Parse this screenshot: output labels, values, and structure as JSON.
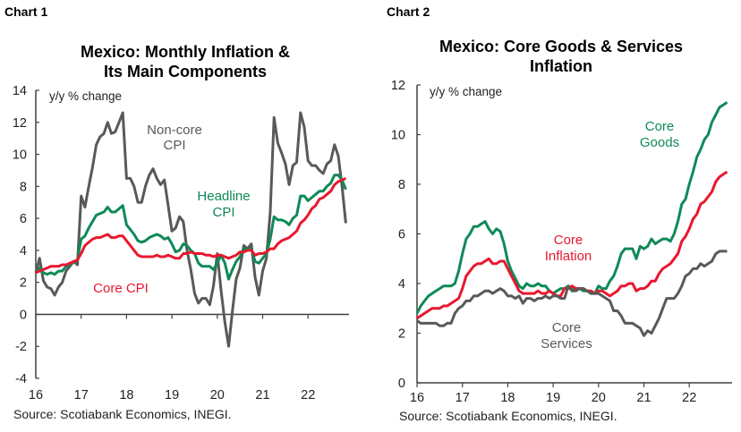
{
  "colors": {
    "non_core": "#595959",
    "headline": "#0e8a57",
    "core": "#e8182e",
    "axis": "#404040"
  },
  "chart_data": [
    {
      "label": "Chart 1",
      "type": "line",
      "title_lines": [
        "Mexico: Monthly Inflation &",
        "Its Main Components"
      ],
      "ylabel": "y/y % change",
      "ylim": [
        -4,
        14
      ],
      "yticks": [
        -4,
        -2,
        0,
        2,
        4,
        6,
        8,
        10,
        12,
        14
      ],
      "xtick_labels": [
        "16",
        "17",
        "18",
        "19",
        "20",
        "21",
        "22"
      ],
      "grid": false,
      "source": "Source: Scotiabank Economics, INEGI.",
      "x": [
        "2016-01",
        "2016-02",
        "2016-03",
        "2016-04",
        "2016-05",
        "2016-06",
        "2016-07",
        "2016-08",
        "2016-09",
        "2016-10",
        "2016-11",
        "2016-12",
        "2017-01",
        "2017-02",
        "2017-03",
        "2017-04",
        "2017-05",
        "2017-06",
        "2017-07",
        "2017-08",
        "2017-09",
        "2017-10",
        "2017-11",
        "2017-12",
        "2018-01",
        "2018-02",
        "2018-03",
        "2018-04",
        "2018-05",
        "2018-06",
        "2018-07",
        "2018-08",
        "2018-09",
        "2018-10",
        "2018-11",
        "2018-12",
        "2019-01",
        "2019-02",
        "2019-03",
        "2019-04",
        "2019-05",
        "2019-06",
        "2019-07",
        "2019-08",
        "2019-09",
        "2019-10",
        "2019-11",
        "2019-12",
        "2020-01",
        "2020-02",
        "2020-03",
        "2020-04",
        "2020-05",
        "2020-06",
        "2020-07",
        "2020-08",
        "2020-09",
        "2020-10",
        "2020-11",
        "2020-12",
        "2021-01",
        "2021-02",
        "2021-03",
        "2021-04",
        "2021-05",
        "2021-06",
        "2021-07",
        "2021-08",
        "2021-09",
        "2021-10",
        "2021-11",
        "2021-12",
        "2022-01",
        "2022-02",
        "2022-03",
        "2022-04",
        "2022-05",
        "2022-06",
        "2022-07",
        "2022-08",
        "2022-09",
        "2022-10",
        "2022-11"
      ],
      "series": [
        {
          "name": "Non-core CPI",
          "label_lines": [
            "Non-core",
            "CPI"
          ],
          "color": "#595959",
          "values": [
            2.6,
            3.5,
            2.1,
            1.7,
            1.6,
            1.2,
            1.7,
            2.0,
            2.7,
            3.0,
            3.3,
            3.1,
            7.4,
            6.7,
            8.0,
            9.2,
            10.6,
            11.1,
            11.3,
            12.0,
            11.3,
            11.4,
            12.0,
            12.6,
            8.5,
            8.5,
            8.0,
            7.0,
            7.0,
            8.0,
            8.7,
            9.1,
            8.5,
            8.1,
            8.4,
            6.8,
            5.2,
            5.4,
            6.1,
            5.8,
            4.0,
            2.8,
            1.3,
            0.7,
            1.0,
            1.0,
            0.6,
            1.8,
            3.8,
            1.5,
            -0.5,
            -2.0,
            0.2,
            2.2,
            2.9,
            4.3,
            4.1,
            4.4,
            2.3,
            1.2,
            2.7,
            3.5,
            6.4,
            12.3,
            10.7,
            10.1,
            9.4,
            8.1,
            9.3,
            9.5,
            12.6,
            11.7,
            9.6,
            9.3,
            9.3,
            9.0,
            8.8,
            9.4,
            9.6,
            10.6,
            9.9,
            8.0,
            5.7
          ]
        },
        {
          "name": "Headline CPI",
          "label_lines": [
            "Headline",
            "CPI"
          ],
          "color": "#0e8a57",
          "values": [
            2.6,
            2.9,
            2.6,
            2.5,
            2.6,
            2.5,
            2.7,
            2.7,
            3.0,
            3.1,
            3.3,
            3.4,
            4.7,
            4.9,
            5.4,
            5.8,
            6.2,
            6.3,
            6.4,
            6.7,
            6.4,
            6.4,
            6.6,
            6.8,
            5.6,
            5.3,
            5.0,
            4.6,
            4.5,
            4.6,
            4.8,
            4.9,
            5.0,
            4.9,
            4.7,
            4.8,
            4.4,
            3.9,
            4.0,
            4.4,
            4.3,
            4.0,
            3.8,
            3.2,
            3.0,
            3.0,
            3.0,
            2.8,
            3.2,
            3.7,
            3.2,
            2.2,
            2.8,
            3.3,
            3.6,
            4.1,
            4.0,
            4.1,
            3.3,
            3.2,
            3.5,
            3.8,
            4.7,
            6.1,
            5.9,
            5.9,
            5.8,
            5.6,
            6.0,
            6.2,
            7.4,
            7.4,
            7.1,
            7.3,
            7.5,
            7.7,
            7.7,
            8.0,
            8.2,
            8.7,
            8.7,
            8.4,
            7.8
          ]
        },
        {
          "name": "Core CPI",
          "label_lines": [
            "Core CPI"
          ],
          "color": "#e8182e",
          "values": [
            2.6,
            2.7,
            2.8,
            2.9,
            3.0,
            3.0,
            3.0,
            3.1,
            3.1,
            3.2,
            3.3,
            3.4,
            3.8,
            4.3,
            4.5,
            4.7,
            4.8,
            4.8,
            4.9,
            5.0,
            4.8,
            4.8,
            4.9,
            4.9,
            4.6,
            4.3,
            4.0,
            3.7,
            3.6,
            3.6,
            3.6,
            3.6,
            3.7,
            3.6,
            3.6,
            3.7,
            3.6,
            3.5,
            3.5,
            3.8,
            3.8,
            3.9,
            3.8,
            3.8,
            3.8,
            3.7,
            3.7,
            3.6,
            3.7,
            3.7,
            3.6,
            3.5,
            3.6,
            3.7,
            3.9,
            3.9,
            4.0,
            4.0,
            3.7,
            3.8,
            3.8,
            3.9,
            4.1,
            4.1,
            4.4,
            4.6,
            4.7,
            4.8,
            5.0,
            5.2,
            5.7,
            5.9,
            6.2,
            6.6,
            6.8,
            7.2,
            7.3,
            7.5,
            7.7,
            8.1,
            8.3,
            8.4,
            8.5
          ]
        }
      ]
    },
    {
      "label": "Chart 2",
      "type": "line",
      "title_lines": [
        "Mexico: Core Goods & Services",
        "Inflation"
      ],
      "ylabel": "y/y % change",
      "ylim": [
        0,
        12
      ],
      "yticks": [
        0,
        2,
        4,
        6,
        8,
        10,
        12
      ],
      "xtick_labels": [
        "16",
        "17",
        "18",
        "19",
        "20",
        "21",
        "22"
      ],
      "grid": false,
      "source": "Source: Scotiabank Economics, INEGI.",
      "x": [
        "2016-01",
        "2016-02",
        "2016-03",
        "2016-04",
        "2016-05",
        "2016-06",
        "2016-07",
        "2016-08",
        "2016-09",
        "2016-10",
        "2016-11",
        "2016-12",
        "2017-01",
        "2017-02",
        "2017-03",
        "2017-04",
        "2017-05",
        "2017-06",
        "2017-07",
        "2017-08",
        "2017-09",
        "2017-10",
        "2017-11",
        "2017-12",
        "2018-01",
        "2018-02",
        "2018-03",
        "2018-04",
        "2018-05",
        "2018-06",
        "2018-07",
        "2018-08",
        "2018-09",
        "2018-10",
        "2018-11",
        "2018-12",
        "2019-01",
        "2019-02",
        "2019-03",
        "2019-04",
        "2019-05",
        "2019-06",
        "2019-07",
        "2019-08",
        "2019-09",
        "2019-10",
        "2019-11",
        "2019-12",
        "2020-01",
        "2020-02",
        "2020-03",
        "2020-04",
        "2020-05",
        "2020-06",
        "2020-07",
        "2020-08",
        "2020-09",
        "2020-10",
        "2020-11",
        "2020-12",
        "2021-01",
        "2021-02",
        "2021-03",
        "2021-04",
        "2021-05",
        "2021-06",
        "2021-07",
        "2021-08",
        "2021-09",
        "2021-10",
        "2021-11",
        "2021-12",
        "2022-01",
        "2022-02",
        "2022-03",
        "2022-04",
        "2022-05",
        "2022-06",
        "2022-07",
        "2022-08",
        "2022-09",
        "2022-10",
        "2022-11"
      ],
      "series": [
        {
          "name": "Core Goods",
          "label_lines": [
            "Core",
            "Goods"
          ],
          "color": "#0e8a57",
          "values": [
            2.8,
            3.1,
            3.3,
            3.5,
            3.6,
            3.7,
            3.8,
            3.9,
            3.9,
            3.9,
            4.0,
            4.5,
            5.2,
            5.8,
            6.0,
            6.3,
            6.3,
            6.4,
            6.5,
            6.2,
            6.0,
            6.2,
            6.1,
            5.6,
            4.9,
            4.5,
            4.2,
            3.9,
            3.8,
            4.0,
            3.9,
            3.9,
            4.0,
            3.9,
            3.9,
            3.7,
            3.6,
            3.7,
            3.8,
            3.8,
            3.9,
            3.8,
            3.8,
            3.8,
            3.7,
            3.7,
            3.6,
            3.6,
            3.9,
            3.8,
            3.8,
            4.1,
            4.3,
            4.7,
            5.2,
            5.4,
            5.4,
            5.4,
            5.0,
            5.5,
            5.4,
            5.5,
            5.8,
            5.6,
            5.7,
            5.8,
            5.8,
            5.7,
            6.0,
            6.5,
            7.2,
            7.4,
            8.0,
            8.5,
            9.1,
            9.4,
            9.8,
            10.0,
            10.5,
            10.8,
            11.1,
            11.2,
            11.3
          ]
        },
        {
          "name": "Core Inflation",
          "label_lines": [
            "Core",
            "Inflation"
          ],
          "color": "#e8182e",
          "values": [
            2.6,
            2.7,
            2.8,
            2.9,
            3.0,
            3.0,
            3.0,
            3.1,
            3.1,
            3.2,
            3.3,
            3.4,
            3.8,
            4.3,
            4.5,
            4.7,
            4.8,
            4.8,
            4.9,
            5.0,
            4.8,
            4.8,
            4.9,
            4.9,
            4.6,
            4.3,
            4.0,
            3.7,
            3.6,
            3.6,
            3.6,
            3.6,
            3.7,
            3.6,
            3.6,
            3.7,
            3.6,
            3.5,
            3.5,
            3.8,
            3.8,
            3.9,
            3.8,
            3.8,
            3.8,
            3.7,
            3.7,
            3.6,
            3.7,
            3.7,
            3.6,
            3.5,
            3.6,
            3.7,
            3.9,
            3.9,
            4.0,
            4.0,
            3.7,
            3.8,
            3.8,
            3.9,
            4.1,
            4.1,
            4.4,
            4.6,
            4.7,
            4.8,
            5.0,
            5.2,
            5.7,
            5.9,
            6.2,
            6.6,
            6.8,
            7.2,
            7.3,
            7.5,
            7.7,
            8.1,
            8.3,
            8.4,
            8.5
          ]
        },
        {
          "name": "Core Services",
          "label_lines": [
            "Core",
            "Services"
          ],
          "color": "#595959",
          "values": [
            2.5,
            2.4,
            2.4,
            2.4,
            2.4,
            2.4,
            2.3,
            2.3,
            2.4,
            2.4,
            2.8,
            3.0,
            3.1,
            3.3,
            3.3,
            3.5,
            3.5,
            3.6,
            3.7,
            3.7,
            3.6,
            3.7,
            3.8,
            3.7,
            3.5,
            3.5,
            3.4,
            3.5,
            3.2,
            3.4,
            3.4,
            3.3,
            3.4,
            3.4,
            3.5,
            3.4,
            3.5,
            3.5,
            3.4,
            3.4,
            3.9,
            3.7,
            3.7,
            3.8,
            3.8,
            3.7,
            3.6,
            3.6,
            3.6,
            3.5,
            3.4,
            3.3,
            2.9,
            2.9,
            2.7,
            2.4,
            2.4,
            2.4,
            2.3,
            2.2,
            1.9,
            2.1,
            2.0,
            2.3,
            2.6,
            3.0,
            3.4,
            3.4,
            3.4,
            3.6,
            3.9,
            4.3,
            4.4,
            4.6,
            4.6,
            4.8,
            4.7,
            4.8,
            4.9,
            5.2,
            5.3,
            5.3,
            5.3
          ]
        }
      ]
    }
  ]
}
